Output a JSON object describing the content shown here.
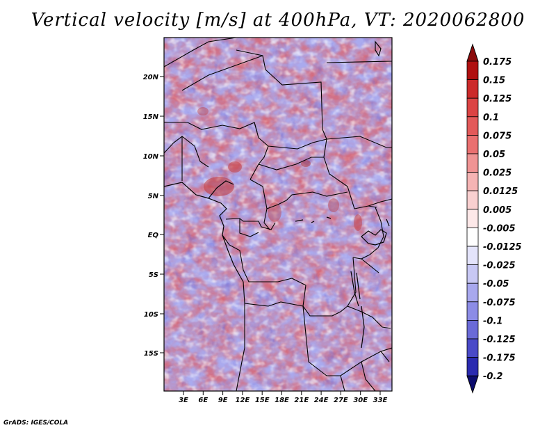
{
  "title": "Vertical velocity [m/s] at 400hPa, VT: 2020062800",
  "footer": "GrADS: IGES/COLA",
  "map": {
    "lon_ticks": [
      "3E",
      "6E",
      "9E",
      "12E",
      "15E",
      "18E",
      "21E",
      "24E",
      "27E",
      "30E",
      "33E"
    ],
    "lat_ticks": [
      "20N",
      "15N",
      "10N",
      "5N",
      "EQ",
      "5S",
      "10S",
      "15S"
    ]
  },
  "colorbar": {
    "levels": [
      "0.175",
      "0.15",
      "0.125",
      "0.1",
      "0.075",
      "0.05",
      "0.025",
      "0.0125",
      "0.005",
      "-0.005",
      "-0.0125",
      "-0.025",
      "-0.05",
      "-0.075",
      "-0.1",
      "-0.125",
      "-0.175",
      "-0.2"
    ],
    "colors": [
      "#b01010",
      "#cc2a2a",
      "#dc4444",
      "#e35a5a",
      "#ea7070",
      "#f09494",
      "#f5b4b4",
      "#f9d0d0",
      "#fde8e8",
      "#ffffff",
      "#e4e4fb",
      "#c8c8f4",
      "#a8a8ee",
      "#8c8ce6",
      "#6a6ad8",
      "#4a4ac8",
      "#2a2ab0",
      "#14148e"
    ],
    "top_color": "#8b0a0a",
    "bottom_color": "#0c0c6e"
  }
}
